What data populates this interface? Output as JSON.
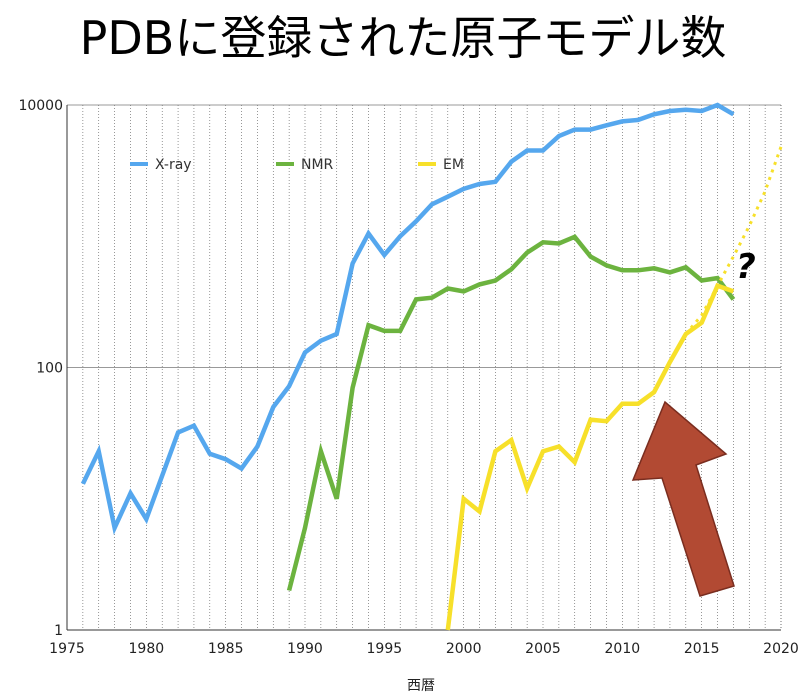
{
  "chart_data": {
    "type": "line",
    "title": "PDBに登録された原子モデル数",
    "xlabel": "西暦",
    "ylabel": "",
    "yscale": "log",
    "xlim": [
      1975,
      2020
    ],
    "ylim": [
      1,
      10000
    ],
    "xticks": [
      1975,
      1980,
      1985,
      1990,
      1995,
      2000,
      2005,
      2010,
      2015,
      2020
    ],
    "yticks": [
      1,
      100,
      10000
    ],
    "grid": true,
    "legend_position": "top-left",
    "series": [
      {
        "name": "X-ray",
        "color": "#55a7ee",
        "x": [
          1976,
          1977,
          1978,
          1979,
          1980,
          1981,
          1982,
          1983,
          1984,
          1985,
          1986,
          1987,
          1988,
          1989,
          1990,
          1991,
          1992,
          1993,
          1994,
          1995,
          1996,
          1997,
          1998,
          1999,
          2000,
          2001,
          2002,
          2003,
          2004,
          2005,
          2006,
          2007,
          2008,
          2009,
          2010,
          2011,
          2012,
          2013,
          2014,
          2015,
          2016,
          2017
        ],
        "y": [
          13,
          23,
          6,
          11,
          7,
          15,
          32,
          36,
          22,
          20,
          17,
          25,
          50,
          72,
          130,
          160,
          180,
          620,
          1050,
          720,
          1000,
          1300,
          1750,
          2000,
          2300,
          2500,
          2600,
          3700,
          4500,
          4500,
          5800,
          6500,
          6500,
          7000,
          7500,
          7700,
          8500,
          9000,
          9200,
          9000,
          10000,
          8500
        ]
      },
      {
        "name": "NMR",
        "color": "#6cb33f",
        "x": [
          1989,
          1990,
          1991,
          1992,
          1993,
          1994,
          1995,
          1996,
          1997,
          1998,
          1999,
          2000,
          2001,
          2002,
          2003,
          2004,
          2005,
          2006,
          2007,
          2008,
          2009,
          2010,
          2011,
          2012,
          2013,
          2014,
          2015,
          2016,
          2017
        ],
        "y": [
          2,
          6,
          23,
          10,
          70,
          210,
          190,
          190,
          330,
          340,
          400,
          380,
          430,
          460,
          560,
          750,
          900,
          880,
          990,
          700,
          600,
          550,
          550,
          570,
          530,
          580,
          460,
          480,
          330
        ]
      },
      {
        "name": "EM",
        "color": "#f7e02a",
        "x": [
          1999,
          2000,
          2001,
          2002,
          2003,
          2004,
          2005,
          2006,
          2007,
          2008,
          2009,
          2010,
          2011,
          2012,
          2013,
          2014,
          2015,
          2016,
          2017
        ],
        "y": [
          1,
          10,
          8,
          23,
          28,
          12,
          23,
          25,
          19,
          40,
          39,
          53,
          53,
          65,
          110,
          180,
          220,
          420,
          380
        ]
      },
      {
        "name": "",
        "color": "#f7e02a",
        "dashed": true,
        "x": [
          2014,
          2015,
          2016,
          2017,
          2018,
          2019,
          2020
        ],
        "y": [
          180,
          250,
          420,
          700,
          1200,
          2200,
          4800
        ]
      }
    ]
  },
  "annotations": {
    "question": "?"
  }
}
